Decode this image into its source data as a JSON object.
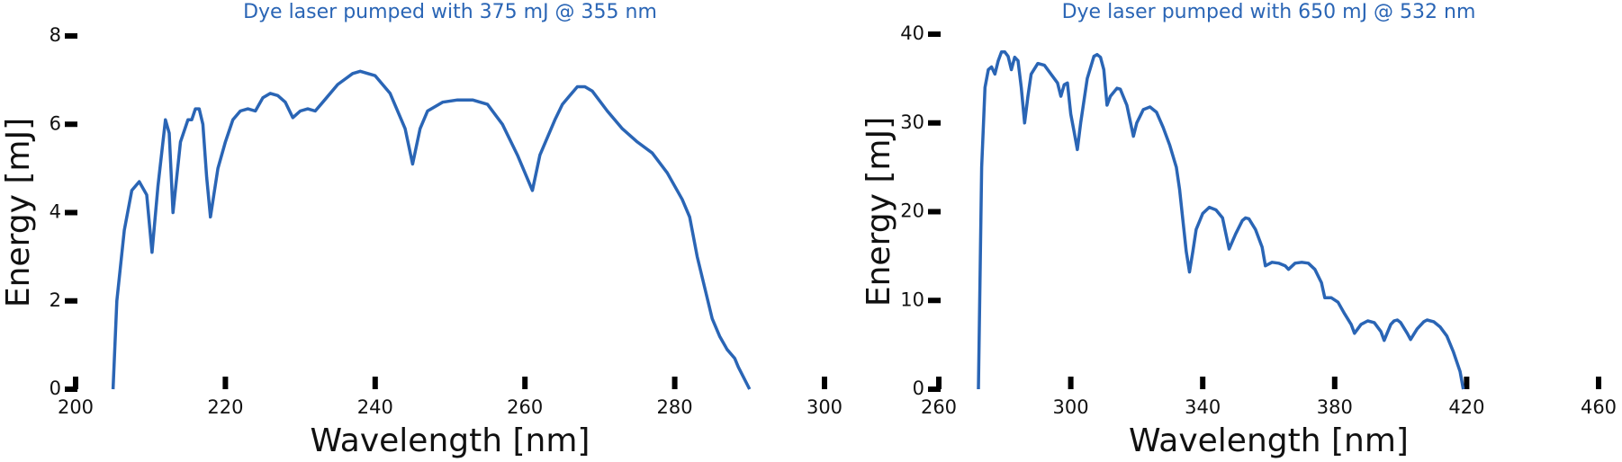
{
  "chart_data": [
    {
      "type": "line",
      "title": "Dye laser pumped with 375 mJ @ 355 nm",
      "xlabel": "Wavelength [nm]",
      "ylabel": "Energy [mJ]",
      "x": [
        205,
        205.5,
        206.5,
        207.5,
        208.5,
        209.5,
        210.2,
        211,
        212,
        212.5,
        213,
        214,
        215,
        215.5,
        216,
        216.5,
        217,
        217.5,
        218,
        219,
        220,
        221,
        222,
        223,
        224,
        225,
        226,
        227,
        228,
        229,
        230,
        231,
        232,
        233,
        235,
        237,
        238,
        240,
        242,
        244,
        245,
        246,
        247,
        249,
        251,
        253,
        255,
        257,
        259,
        261,
        262,
        264,
        265,
        266,
        267,
        268,
        269,
        271,
        273,
        275,
        277,
        279,
        281,
        282,
        283,
        284,
        285,
        286,
        287,
        288,
        288.5,
        290
      ],
      "series": [
        {
          "color": "#2a65b5",
          "values": [
            0,
            2,
            3.6,
            4.5,
            4.7,
            4.4,
            3.1,
            4.6,
            6.1,
            5.8,
            4.0,
            5.6,
            6.1,
            6.1,
            6.35,
            6.35,
            6.0,
            4.8,
            3.9,
            5.0,
            5.6,
            6.1,
            6.3,
            6.35,
            6.3,
            6.6,
            6.7,
            6.65,
            6.5,
            6.15,
            6.3,
            6.35,
            6.3,
            6.5,
            6.9,
            7.15,
            7.2,
            7.1,
            6.7,
            5.9,
            5.1,
            5.9,
            6.3,
            6.5,
            6.55,
            6.55,
            6.45,
            6.0,
            5.3,
            4.5,
            5.3,
            6.1,
            6.45,
            6.65,
            6.85,
            6.85,
            6.75,
            6.3,
            5.9,
            5.6,
            5.35,
            4.9,
            4.3,
            3.9,
            3.0,
            2.3,
            1.6,
            1.2,
            0.9,
            0.7,
            0.5,
            0
          ]
        }
      ],
      "xlim": [
        200,
        300
      ],
      "xticks": [
        200,
        220,
        240,
        260,
        280,
        300
      ],
      "ylim": [
        0,
        8
      ],
      "yticks": [
        0,
        2,
        4,
        6,
        8
      ]
    },
    {
      "type": "line",
      "title": "Dye laser pumped with 650 mJ @ 532 nm",
      "xlabel": "Wavelength [nm]",
      "ylabel": "Energy [mJ]",
      "x": [
        272,
        273,
        274,
        275,
        276,
        277,
        278,
        279,
        280,
        281,
        282,
        283,
        284,
        285,
        286,
        287,
        288,
        290,
        292,
        294,
        296,
        297,
        298,
        299,
        300,
        301,
        302,
        303,
        305,
        307,
        308,
        309,
        310,
        311,
        312,
        314,
        315,
        317,
        319,
        320,
        322,
        324,
        326,
        328,
        330,
        332,
        333,
        334,
        335,
        336,
        337,
        338,
        340,
        342,
        344,
        346,
        348,
        350,
        352,
        353,
        354,
        356,
        358,
        359,
        361,
        363,
        365,
        366,
        368,
        370,
        372,
        374,
        376,
        377,
        379,
        381,
        383,
        385,
        386,
        388,
        390,
        392,
        394,
        395,
        397,
        398,
        399,
        400,
        402,
        403,
        405,
        407,
        408,
        410,
        412,
        414,
        416,
        418,
        419
      ],
      "series": [
        {
          "color": "#2a65b5",
          "values": [
            0,
            25,
            34,
            36,
            36.3,
            35.5,
            37,
            38,
            38,
            37.5,
            36,
            37.4,
            37,
            34,
            30,
            33,
            35.5,
            36.7,
            36.5,
            35.5,
            34.5,
            33,
            34.3,
            34.5,
            31,
            29,
            27,
            30,
            35,
            37.5,
            37.7,
            37.4,
            36,
            32,
            33,
            33.9,
            33.8,
            32,
            28.5,
            30,
            31.5,
            31.8,
            31.2,
            29.5,
            27.5,
            25,
            22.5,
            19,
            15.5,
            13.2,
            15.5,
            18,
            19.8,
            20.5,
            20.2,
            19.3,
            15.8,
            17.5,
            19,
            19.3,
            19.2,
            18,
            16,
            13.9,
            14.3,
            14.2,
            13.9,
            13.5,
            14.2,
            14.3,
            14.2,
            13.5,
            12,
            10.3,
            10.3,
            9.8,
            8.5,
            7.3,
            6.3,
            7.3,
            7.7,
            7.5,
            6.5,
            5.5,
            7.3,
            7.7,
            7.8,
            7.5,
            6.3,
            5.6,
            6.8,
            7.6,
            7.8,
            7.6,
            7,
            6,
            4.2,
            2,
            0
          ]
        }
      ],
      "xlim": [
        260,
        460
      ],
      "xticks": [
        260,
        300,
        340,
        380,
        420,
        460
      ],
      "ylim": [
        0,
        40
      ],
      "yticks": [
        0,
        10,
        20,
        30,
        40
      ]
    }
  ]
}
